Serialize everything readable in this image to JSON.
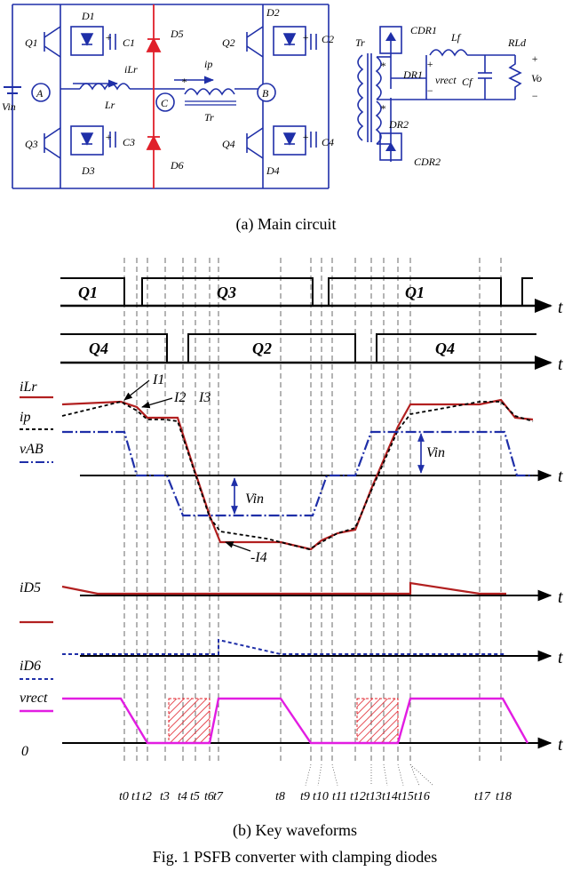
{
  "circuit": {
    "labels": {
      "Q1": "Q1",
      "Q2": "Q2",
      "Q3": "Q3",
      "Q4": "Q4",
      "D1": "D1",
      "D2": "D2",
      "D3": "D3",
      "D4": "D4",
      "D5": "D5",
      "D6": "D6",
      "C1": "C1",
      "C2": "C2",
      "C3": "C3",
      "C4": "C4",
      "Vin": "Vin",
      "A": "A",
      "B": "B",
      "C": "C",
      "iLr": "iLr",
      "Lr": "Lr",
      "ip": "ip",
      "Tr": "Tr",
      "Tr2": "Tr",
      "CDR1": "CDR1",
      "CDR2": "CDR2",
      "DR1": "DR1",
      "DR2": "DR2",
      "Lf": "Lf",
      "Cf": "Cf",
      "RLd": "RLd",
      "vrect": "vrect",
      "Vo": "Vo",
      "star": "*",
      "plus": "+",
      "minus": "−"
    }
  },
  "waveforms": {
    "gate_top": {
      "seg1": "Q1",
      "seg2": "Q3",
      "seg3": "Q1"
    },
    "gate_bottom": {
      "seg1": "Q4",
      "seg2": "Q2",
      "seg3": "Q4"
    },
    "axis_t": "t",
    "signals": {
      "iLr": "iLr",
      "ip": "ip",
      "vAB": "vAB",
      "iD5": "iD5",
      "iD6": "iD6",
      "vrect": "vrect",
      "zero": "0"
    },
    "annotations": {
      "I1": "I1",
      "I2": "I2",
      "I3": "I3",
      "I4": "-I4",
      "Vin1": "Vin",
      "Vin2": "Vin"
    },
    "time_labels": [
      "t0",
      "t1",
      "t2",
      "t3",
      "t4",
      "t5",
      "t6",
      "t7",
      "t8",
      "t9",
      "t10",
      "t11",
      "t12",
      "t13",
      "t14",
      "t15",
      "t16",
      "t17",
      "t18"
    ]
  },
  "captions": {
    "a": "(a) Main circuit",
    "b": "(b) Key waveforms",
    "fig": "Fig. 1 PSFB converter with clamping diodes"
  },
  "colors": {
    "circuit": "#1f2fa8",
    "clamp": "#e0202a",
    "iLr": "#b22020",
    "vAB": "#1f2fa8",
    "vrect": "#e21de2",
    "hatch": "#e0202a"
  }
}
